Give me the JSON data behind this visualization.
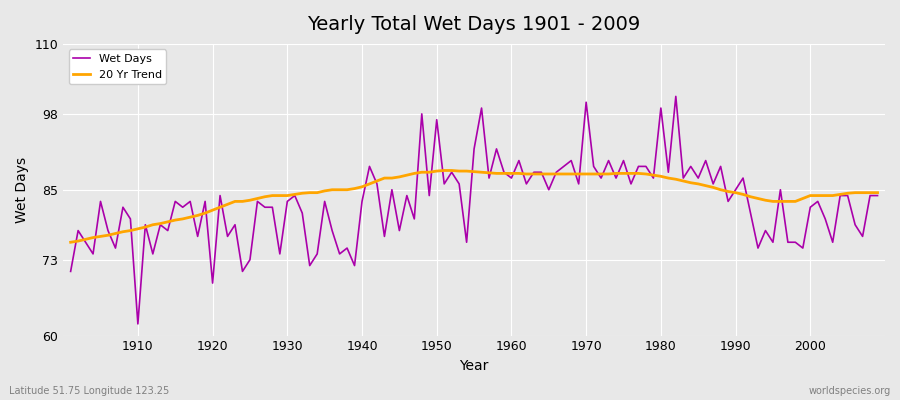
{
  "title": "Yearly Total Wet Days 1901 - 2009",
  "xlabel": "Year",
  "ylabel": "Wet Days",
  "years": [
    1901,
    1902,
    1903,
    1904,
    1905,
    1906,
    1907,
    1908,
    1909,
    1910,
    1911,
    1912,
    1913,
    1914,
    1915,
    1916,
    1917,
    1918,
    1919,
    1920,
    1921,
    1922,
    1923,
    1924,
    1925,
    1926,
    1927,
    1928,
    1929,
    1930,
    1931,
    1932,
    1933,
    1934,
    1935,
    1936,
    1937,
    1938,
    1939,
    1940,
    1941,
    1942,
    1943,
    1944,
    1945,
    1946,
    1947,
    1948,
    1949,
    1950,
    1951,
    1952,
    1953,
    1954,
    1955,
    1956,
    1957,
    1958,
    1959,
    1960,
    1961,
    1962,
    1963,
    1964,
    1965,
    1966,
    1967,
    1968,
    1969,
    1970,
    1971,
    1972,
    1973,
    1974,
    1975,
    1976,
    1977,
    1978,
    1979,
    1980,
    1981,
    1982,
    1983,
    1984,
    1985,
    1986,
    1987,
    1988,
    1989,
    1990,
    1991,
    1992,
    1993,
    1994,
    1995,
    1996,
    1997,
    1998,
    1999,
    2000,
    2001,
    2002,
    2003,
    2004,
    2005,
    2006,
    2007,
    2008,
    2009
  ],
  "wet_days": [
    71,
    78,
    76,
    74,
    83,
    78,
    75,
    82,
    80,
    62,
    79,
    74,
    79,
    78,
    83,
    82,
    83,
    77,
    83,
    69,
    84,
    77,
    79,
    71,
    73,
    83,
    82,
    82,
    74,
    83,
    84,
    81,
    72,
    74,
    83,
    78,
    74,
    75,
    72,
    83,
    89,
    86,
    77,
    85,
    78,
    84,
    80,
    98,
    84,
    97,
    86,
    88,
    86,
    76,
    92,
    99,
    87,
    92,
    88,
    87,
    90,
    86,
    88,
    88,
    85,
    88,
    89,
    90,
    86,
    100,
    89,
    87,
    90,
    87,
    90,
    86,
    89,
    89,
    87,
    99,
    88,
    101,
    87,
    89,
    87,
    90,
    86,
    89,
    83,
    85,
    87,
    81,
    75,
    78,
    76,
    85,
    76,
    76,
    75,
    82,
    83,
    80,
    76,
    84,
    84,
    79,
    77,
    84,
    84
  ],
  "trend_values": [
    76.0,
    76.2,
    76.5,
    76.8,
    77.0,
    77.2,
    77.5,
    77.8,
    78.0,
    78.3,
    78.6,
    79.0,
    79.2,
    79.5,
    79.8,
    80.0,
    80.3,
    80.6,
    81.0,
    81.5,
    82.0,
    82.5,
    83.0,
    83.0,
    83.2,
    83.5,
    83.8,
    84.0,
    84.0,
    84.0,
    84.2,
    84.4,
    84.5,
    84.5,
    84.8,
    85.0,
    85.0,
    85.0,
    85.2,
    85.5,
    86.0,
    86.5,
    87.0,
    87.0,
    87.2,
    87.5,
    87.8,
    88.0,
    88.0,
    88.2,
    88.3,
    88.3,
    88.2,
    88.2,
    88.1,
    88.0,
    87.9,
    87.8,
    87.8,
    87.8,
    87.8,
    87.7,
    87.7,
    87.7,
    87.7,
    87.7,
    87.7,
    87.7,
    87.7,
    87.7,
    87.7,
    87.7,
    87.7,
    87.8,
    87.8,
    87.8,
    87.8,
    87.7,
    87.5,
    87.3,
    87.0,
    86.8,
    86.5,
    86.2,
    86.0,
    85.7,
    85.4,
    85.0,
    84.7,
    84.5,
    84.2,
    83.8,
    83.5,
    83.2,
    83.0,
    83.0,
    83.0,
    83.0,
    83.5,
    84.0,
    84.0,
    84.0,
    84.0,
    84.2,
    84.4,
    84.5,
    84.5,
    84.5,
    84.5
  ],
  "wet_days_color": "#aa00aa",
  "trend_color": "#ffa500",
  "background_color": "#e8e8e8",
  "ylim": [
    60,
    110
  ],
  "yticks": [
    60,
    73,
    85,
    98,
    110
  ],
  "xlim": [
    1901,
    2009
  ],
  "xticks": [
    1910,
    1920,
    1930,
    1940,
    1950,
    1960,
    1970,
    1980,
    1990,
    2000
  ],
  "grid_color": "#ffffff",
  "footnote_left": "Latitude 51.75 Longitude 123.25",
  "footnote_right": "worldspecies.org",
  "legend_labels": [
    "Wet Days",
    "20 Yr Trend"
  ]
}
